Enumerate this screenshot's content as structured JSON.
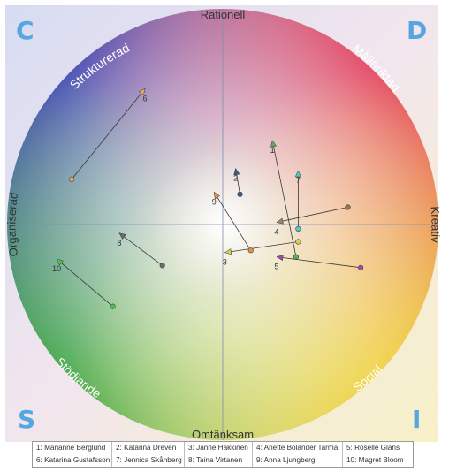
{
  "chart_data": {
    "type": "scatter",
    "axes": {
      "top": "Rationell",
      "bottom": "Omtänksam",
      "left": "Organiserad",
      "right": "Kreativ"
    },
    "diagonals": {
      "upper_left": "Strukturerad",
      "upper_right": "Målinriktad",
      "lower_left": "Stödjande",
      "lower_right": "Social"
    },
    "corners": {
      "top_left": "C",
      "top_right": "D",
      "bottom_left": "S",
      "bottom_right": "I"
    },
    "xlim": [
      -1,
      1
    ],
    "ylim": [
      -1,
      1
    ],
    "grid": false,
    "people": [
      {
        "id": "1",
        "name": "Marianne Berglund",
        "from": [
          0.34,
          -0.15
        ],
        "to": [
          0.23,
          0.39
        ],
        "color": "#5cae5c",
        "start_color": "#5cae5c"
      },
      {
        "id": "2",
        "name": "Katarina Dreven",
        "from": [
          0.08,
          0.14
        ],
        "to": [
          0.06,
          0.26
        ],
        "color": "#3a5d8f",
        "start_color": "#3a5d8f"
      },
      {
        "id": "3",
        "name": "Janne Häkkinen",
        "from": [
          0.35,
          -0.08
        ],
        "to": [
          0.01,
          -0.13
        ],
        "color": "#d6d05a",
        "start_color": "#d6d05a"
      },
      {
        "id": "4",
        "name": "Anette Bolander Tarma",
        "from": [
          0.58,
          0.08
        ],
        "to": [
          0.25,
          0.01
        ],
        "color": "#9c8a66",
        "start_color": "#8c7a50"
      },
      {
        "id": "5",
        "name": "Roselle Glans",
        "from": [
          0.64,
          -0.2
        ],
        "to": [
          0.25,
          -0.15
        ],
        "color": "#9b4fa8",
        "start_color": "#9b4fa8"
      },
      {
        "id": "6",
        "name": "Katarina Gustafsson",
        "from": [
          -0.7,
          0.21
        ],
        "to": [
          -0.36,
          0.63
        ],
        "color": "#e8a95c",
        "start_color": "#e8a95c"
      },
      {
        "id": "7",
        "name": "Jennica Skånberg",
        "from": [
          0.35,
          -0.02
        ],
        "to": [
          0.35,
          0.25
        ],
        "color": "#4fc9c9",
        "start_color": "#4fc9c9"
      },
      {
        "id": "8",
        "name": "Taina Virtanen",
        "from": [
          -0.28,
          -0.19
        ],
        "to": [
          -0.48,
          -0.04
        ],
        "color": "#6b6b6b",
        "start_color": "#6b6b6b"
      },
      {
        "id": "9",
        "name": "Anna Ljungberg",
        "from": [
          0.13,
          -0.12
        ],
        "to": [
          -0.04,
          0.15
        ],
        "color": "#ec8e3c",
        "start_color": "#ec8e3c"
      },
      {
        "id": "10",
        "name": "Magret Bloom",
        "from": [
          -0.51,
          -0.38
        ],
        "to": [
          -0.77,
          -0.16
        ],
        "color": "#4cc44c",
        "start_color": "#4cc44c"
      }
    ]
  },
  "legend": {
    "row1": [
      "1: Marianne Berglund",
      "2: Katarina Dreven",
      "3: Janne Häkkinen",
      "4: Anette Bolander Tarma",
      "5: Roselle Glans"
    ],
    "row2": [
      "6: Katarina Gustafsson",
      "7: Jennica Skånberg",
      "8: Taina Virtanen",
      "9: Anna Ljungberg",
      "10: Magret Bloom"
    ]
  }
}
